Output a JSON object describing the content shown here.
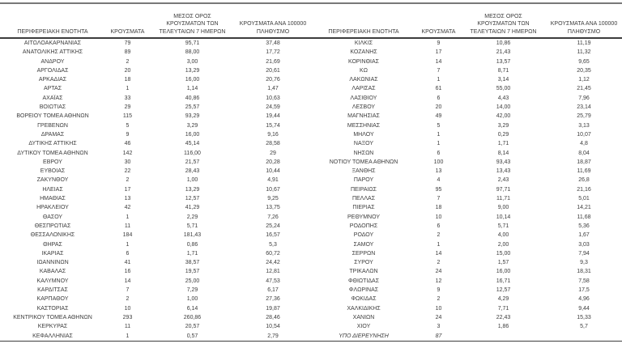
{
  "page": {
    "background_color": "#ffffff",
    "text_color": "#3d3d3d",
    "top_rule_color": "#787878",
    "dark_rule_color": "#3d3d3d",
    "decimal_separator": ","
  },
  "columns": {
    "region": "ΠΕΡΙΦΕΡΕΙΑΚΗ ΕΝΟΤΗΤΑ",
    "cases": "ΚΡΟΥΣΜΑΤΑ",
    "avg7": "ΜΕΣΟΣ ΟΡΟΣ ΚΡΟΥΣΜΑΤΩΝ ΤΩΝ ΤΕΛΕΥΤΑΙΩΝ 7 ΗΜΕΡΩΝ",
    "per100k": "ΚΡΟΥΣΜΑΤΑ ΑΝΑ 100000 ΠΛΗΘΥΣΜΟ"
  },
  "left_table": {
    "rows": [
      {
        "region": "ΑΙΤΩΛΟΑΚΑΡΝΑΝΙΑΣ",
        "cases": "79",
        "avg7": "95,71",
        "per100k": "37,48"
      },
      {
        "region": "ΑΝΑΤΟΛΙΚΗΣ ΑΤΤΙΚΗΣ",
        "cases": "89",
        "avg7": "88,00",
        "per100k": "17,72"
      },
      {
        "region": "ΑΝΔΡΟΥ",
        "cases": "2",
        "avg7": "3,00",
        "per100k": "21,69"
      },
      {
        "region": "ΑΡΓΟΛΙΔΑΣ",
        "cases": "20",
        "avg7": "13,29",
        "per100k": "20,61"
      },
      {
        "region": "ΑΡΚΑΔΙΑΣ",
        "cases": "18",
        "avg7": "16,00",
        "per100k": "20,76"
      },
      {
        "region": "ΑΡΤΑΣ",
        "cases": "1",
        "avg7": "1,14",
        "per100k": "1,47"
      },
      {
        "region": "ΑΧΑΪΑΣ",
        "cases": "33",
        "avg7": "40,86",
        "per100k": "10,63"
      },
      {
        "region": "ΒΟΙΩΤΙΑΣ",
        "cases": "29",
        "avg7": "25,57",
        "per100k": "24,59"
      },
      {
        "region": "ΒΟΡΕΙΟΥ ΤΟΜΕΑ ΑΘΗΝΩΝ",
        "cases": "115",
        "avg7": "93,29",
        "per100k": "19,44"
      },
      {
        "region": "ΓΡΕΒΕΝΩΝ",
        "cases": "5",
        "avg7": "3,29",
        "per100k": "15,74"
      },
      {
        "region": "ΔΡΑΜΑΣ",
        "cases": "9",
        "avg7": "16,00",
        "per100k": "9,16"
      },
      {
        "region": "ΔΥΤΙΚΗΣ ΑΤΤΙΚΗΣ",
        "cases": "46",
        "avg7": "45,14",
        "per100k": "28,58"
      },
      {
        "region": "ΔΥΤΙΚΟΥ ΤΟΜΕΑ ΑΘΗΝΩΝ",
        "cases": "142",
        "avg7": "116,00",
        "per100k": "29"
      },
      {
        "region": "ΕΒΡΟΥ",
        "cases": "30",
        "avg7": "21,57",
        "per100k": "20,28"
      },
      {
        "region": "ΕΥΒΟΙΑΣ",
        "cases": "22",
        "avg7": "28,43",
        "per100k": "10,44"
      },
      {
        "region": "ΖΑΚΥΝΘΟΥ",
        "cases": "2",
        "avg7": "1,00",
        "per100k": "4,91"
      },
      {
        "region": "ΗΛΕΙΑΣ",
        "cases": "17",
        "avg7": "13,29",
        "per100k": "10,67"
      },
      {
        "region": "ΗΜΑΘΙΑΣ",
        "cases": "13",
        "avg7": "12,57",
        "per100k": "9,25"
      },
      {
        "region": "ΗΡΑΚΛΕΙΟΥ",
        "cases": "42",
        "avg7": "41,29",
        "per100k": "13,75"
      },
      {
        "region": "ΘΑΣΟΥ",
        "cases": "1",
        "avg7": "2,29",
        "per100k": "7,26"
      },
      {
        "region": "ΘΕΣΠΡΩΤΙΑΣ",
        "cases": "11",
        "avg7": "5,71",
        "per100k": "25,24"
      },
      {
        "region": "ΘΕΣΣΑΛΟΝΙΚΗΣ",
        "cases": "184",
        "avg7": "181,43",
        "per100k": "16,57"
      },
      {
        "region": "ΘΗΡΑΣ",
        "cases": "1",
        "avg7": "0,86",
        "per100k": "5,3"
      },
      {
        "region": "ΙΚΑΡΙΑΣ",
        "cases": "6",
        "avg7": "1,71",
        "per100k": "60,72"
      },
      {
        "region": "ΙΩΑΝΝΙΝΩΝ",
        "cases": "41",
        "avg7": "38,57",
        "per100k": "24,42"
      },
      {
        "region": "ΚΑΒΑΛΑΣ",
        "cases": "16",
        "avg7": "19,57",
        "per100k": "12,81"
      },
      {
        "region": "ΚΑΛΥΜΝΟΥ",
        "cases": "14",
        "avg7": "25,00",
        "per100k": "47,53"
      },
      {
        "region": "ΚΑΡΔΙΤΣΑΣ",
        "cases": "7",
        "avg7": "7,29",
        "per100k": "6,17"
      },
      {
        "region": "ΚΑΡΠΑΘΟΥ",
        "cases": "2",
        "avg7": "1,00",
        "per100k": "27,36"
      },
      {
        "region": "ΚΑΣΤΟΡΙΑΣ",
        "cases": "10",
        "avg7": "6,14",
        "per100k": "19,87"
      },
      {
        "region": "ΚΕΝΤΡΙΚΟΥ ΤΟΜΕΑ ΑΘΗΝΩΝ",
        "cases": "293",
        "avg7": "260,86",
        "per100k": "28,46"
      },
      {
        "region": "ΚΕΡΚΥΡΑΣ",
        "cases": "11",
        "avg7": "20,57",
        "per100k": "10,54"
      },
      {
        "region": "ΚΕΦΑΛΛΗΝΙΑΣ",
        "cases": "1",
        "avg7": "0,57",
        "per100k": "2,79"
      }
    ]
  },
  "right_table": {
    "rows": [
      {
        "region": "ΚΙΛΚΙΣ",
        "cases": "9",
        "avg7": "10,86",
        "per100k": "11,19"
      },
      {
        "region": "ΚΟΖΑΝΗΣ",
        "cases": "17",
        "avg7": "21,43",
        "per100k": "11,32"
      },
      {
        "region": "ΚΟΡΙΝΘΙΑΣ",
        "cases": "14",
        "avg7": "13,57",
        "per100k": "9,65"
      },
      {
        "region": "ΚΩ",
        "cases": "7",
        "avg7": "8,71",
        "per100k": "20,35"
      },
      {
        "region": "ΛΑΚΩΝΙΑΣ",
        "cases": "1",
        "avg7": "3,14",
        "per100k": "1,12"
      },
      {
        "region": "ΛΑΡΙΣΑΣ",
        "cases": "61",
        "avg7": "55,00",
        "per100k": "21,45"
      },
      {
        "region": "ΛΑΣΙΘΙΟΥ",
        "cases": "6",
        "avg7": "4,43",
        "per100k": "7,96"
      },
      {
        "region": "ΛΕΣΒΟΥ",
        "cases": "20",
        "avg7": "14,00",
        "per100k": "23,14"
      },
      {
        "region": "ΜΑΓΝΗΣΙΑΣ",
        "cases": "49",
        "avg7": "42,00",
        "per100k": "25,79"
      },
      {
        "region": "ΜΕΣΣΗΝΙΑΣ",
        "cases": "5",
        "avg7": "3,29",
        "per100k": "3,13"
      },
      {
        "region": "ΜΗΛΟΥ",
        "cases": "1",
        "avg7": "0,29",
        "per100k": "10,07"
      },
      {
        "region": "ΝΑΞΟΥ",
        "cases": "1",
        "avg7": "1,71",
        "per100k": "4,8"
      },
      {
        "region": "ΝΗΣΩΝ",
        "cases": "6",
        "avg7": "8,14",
        "per100k": "8,04"
      },
      {
        "region": "ΝΟΤΙΟΥ ΤΟΜΕΑ ΑΘΗΝΩΝ",
        "cases": "100",
        "avg7": "93,43",
        "per100k": "18,87"
      },
      {
        "region": "ΞΑΝΘΗΣ",
        "cases": "13",
        "avg7": "13,43",
        "per100k": "11,69"
      },
      {
        "region": "ΠΑΡΟΥ",
        "cases": "4",
        "avg7": "2,43",
        "per100k": "26,8"
      },
      {
        "region": "ΠΕΙΡΑΙΩΣ",
        "cases": "95",
        "avg7": "97,71",
        "per100k": "21,16"
      },
      {
        "region": "ΠΕΛΛΑΣ",
        "cases": "7",
        "avg7": "11,71",
        "per100k": "5,01"
      },
      {
        "region": "ΠΙΕΡΙΑΣ",
        "cases": "18",
        "avg7": "9,00",
        "per100k": "14,21"
      },
      {
        "region": "ΡΕΘΥΜΝΟΥ",
        "cases": "10",
        "avg7": "10,14",
        "per100k": "11,68"
      },
      {
        "region": "ΡΟΔΟΠΗΣ",
        "cases": "6",
        "avg7": "5,71",
        "per100k": "5,36"
      },
      {
        "region": "ΡΟΔΟΥ",
        "cases": "2",
        "avg7": "4,00",
        "per100k": "1,67"
      },
      {
        "region": "ΣΑΜΟΥ",
        "cases": "1",
        "avg7": "2,00",
        "per100k": "3,03"
      },
      {
        "region": "ΣΕΡΡΩΝ",
        "cases": "14",
        "avg7": "15,00",
        "per100k": "7,94"
      },
      {
        "region": "ΣΥΡΟΥ",
        "cases": "2",
        "avg7": "1,57",
        "per100k": "9,3"
      },
      {
        "region": "ΤΡΙΚΑΛΩΝ",
        "cases": "24",
        "avg7": "16,00",
        "per100k": "18,31"
      },
      {
        "region": "ΦΘΙΩΤΙΔΑΣ",
        "cases": "12",
        "avg7": "16,71",
        "per100k": "7,58"
      },
      {
        "region": "ΦΛΩΡΙΝΑΣ",
        "cases": "9",
        "avg7": "12,57",
        "per100k": "17,5"
      },
      {
        "region": "ΦΩΚΙΔΑΣ",
        "cases": "2",
        "avg7": "4,29",
        "per100k": "4,96"
      },
      {
        "region": "ΧΑΛΚΙΔΙΚΗΣ",
        "cases": "10",
        "avg7": "7,71",
        "per100k": "9,44"
      },
      {
        "region": "ΧΑΝΙΩΝ",
        "cases": "24",
        "avg7": "22,43",
        "per100k": "15,33"
      },
      {
        "region": "ΧΙΟΥ",
        "cases": "3",
        "avg7": "1,86",
        "per100k": "5,7"
      },
      {
        "region": "ΥΠΟ ΔΙΕΡΕΥΝΗΣΗ",
        "cases": "87",
        "avg7": "",
        "per100k": "",
        "italic": true
      }
    ]
  }
}
